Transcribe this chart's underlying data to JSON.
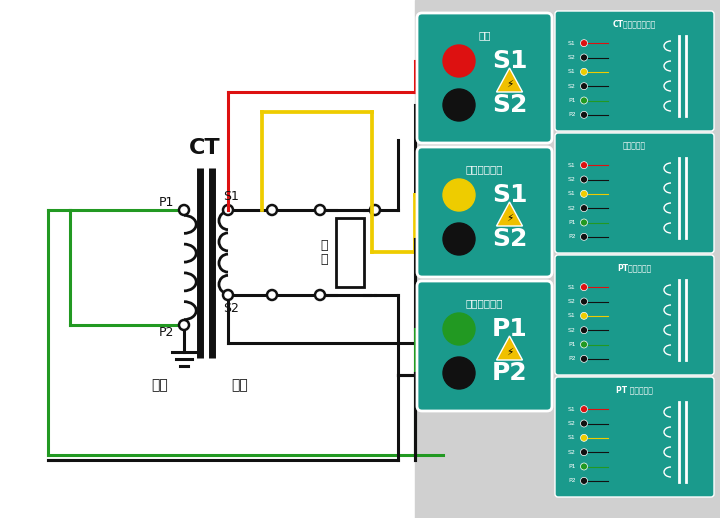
{
  "bg_left": "#ffffff",
  "bg_right": "#d0d0d0",
  "teal": "#1a9a8c",
  "black": "#111111",
  "red": "#dd1111",
  "yellow": "#eecc00",
  "green": "#229922",
  "ct_label": "CT",
  "yi_ci": "一次",
  "er_ci": "二次",
  "fu_zai_1": "負",
  "fu_zai_2": "載",
  "s1": "S1",
  "s2": "S2",
  "p1": "P1",
  "p2": "P2",
  "box1_title": "輸出",
  "box2_title": "輸出電壓測量",
  "box3_title": "感應電壓測量",
  "small1_title": "CT勵磁變比接線圖",
  "small2_title": "負荷接線圖",
  "small3_title": "PT勵磁接線圖",
  "small4_title": "PT 變比接線圖",
  "small_rows": [
    "S1",
    "S2",
    "S1",
    "S2",
    "P1",
    "P2"
  ],
  "small_row_colors": [
    "#dd1111",
    "#111111",
    "#eecc00",
    "#111111",
    "#229922",
    "#111111"
  ]
}
